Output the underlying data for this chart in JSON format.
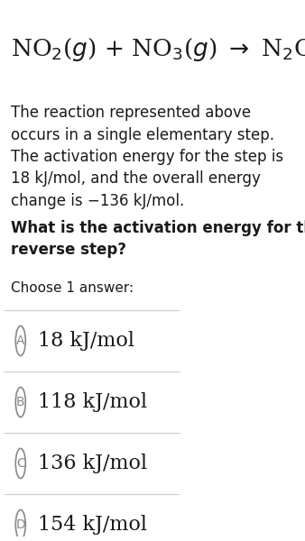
{
  "bg_color": "#ffffff",
  "text_color": "#1a1a1a",
  "body_text": "The reaction represented above\noccurs in a single elementary step.\nThe activation energy for the step is\n18 kJ/mol, and the overall energy\nchange is −136 kJ/mol.",
  "bold_question": "What is the activation energy for the\nreverse step?",
  "choose_label": "Choose 1 answer:",
  "choices": [
    {
      "letter": "A",
      "text": "18 kJ/mol"
    },
    {
      "letter": "B",
      "text": "118 kJ/mol"
    },
    {
      "letter": "C",
      "text": "136 kJ/mol"
    },
    {
      "letter": "D",
      "text": "154 kJ/mol"
    }
  ],
  "circle_color": "#888888",
  "separator_color": "#cccccc",
  "eq_fontsize": 19,
  "body_fontsize": 12,
  "bold_fontsize": 12,
  "choose_fontsize": 11,
  "choice_fontsize": 16
}
